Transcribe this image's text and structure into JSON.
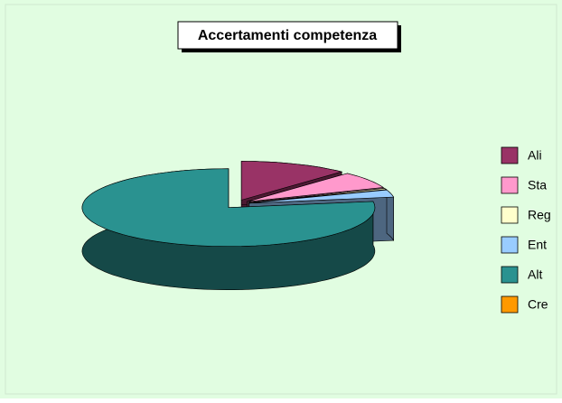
{
  "chart_data": {
    "type": "pie",
    "title": "Accertamenti competenza",
    "categories": [
      "Ali",
      "Sta",
      "Reg",
      "Ent",
      "Alt",
      "Cre"
    ],
    "values": [
      12,
      7,
      0.5,
      3,
      77.5,
      0
    ],
    "colors": [
      "#993366",
      "#ff99cc",
      "#ffffcc",
      "#99ccff",
      "#2a9290",
      "#ff9900"
    ],
    "legend": "right",
    "exploded": true,
    "three_d": true
  }
}
